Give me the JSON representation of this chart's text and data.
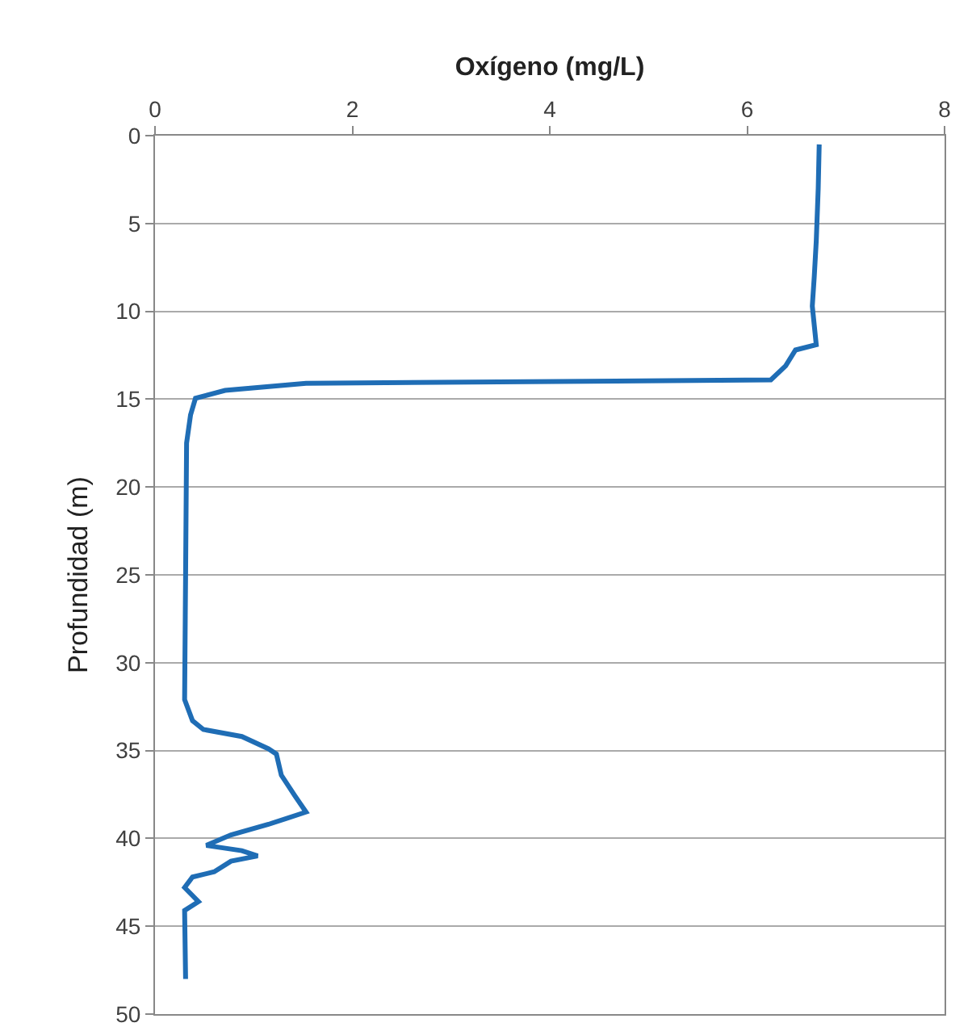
{
  "chart_data": {
    "type": "line",
    "xlabel": "Oxígeno (mg/L)",
    "ylabel": "Profundidad (m)",
    "xlim": [
      0,
      8
    ],
    "xticks": [
      0,
      2,
      4,
      6,
      8
    ],
    "ylim": [
      50,
      0
    ],
    "yticks": [
      0,
      5,
      10,
      15,
      20,
      25,
      30,
      35,
      40,
      45,
      50
    ],
    "grid": "y",
    "marker": "none",
    "line_style": "solid",
    "series": [
      {
        "color": "#1f6db5",
        "x": [
          6.73,
          6.72,
          6.7,
          6.68,
          6.66,
          6.7,
          6.49,
          6.39,
          6.24,
          1.53,
          0.71,
          0.41,
          0.36,
          0.32,
          0.31,
          0.3,
          0.3,
          0.38,
          0.49,
          0.88,
          1.15,
          1.23,
          1.28,
          1.42,
          1.53,
          1.15,
          0.77,
          0.52,
          0.88,
          1.04,
          0.77,
          0.6,
          0.38,
          0.3,
          0.44,
          0.3,
          0.31
        ],
        "values": [
          0.5,
          3,
          6,
          8,
          9.7,
          11.9,
          12.2,
          13.1,
          13.9,
          14.1,
          14.5,
          14.95,
          15.9,
          17.5,
          25,
          32.1,
          32.1,
          33.3,
          33.8,
          34.2,
          34.9,
          35.2,
          36.4,
          37.6,
          38.5,
          39.2,
          39.8,
          40.4,
          40.7,
          41.0,
          41.3,
          41.9,
          42.2,
          42.8,
          43.6,
          44.1,
          48.0
        ]
      }
    ]
  }
}
